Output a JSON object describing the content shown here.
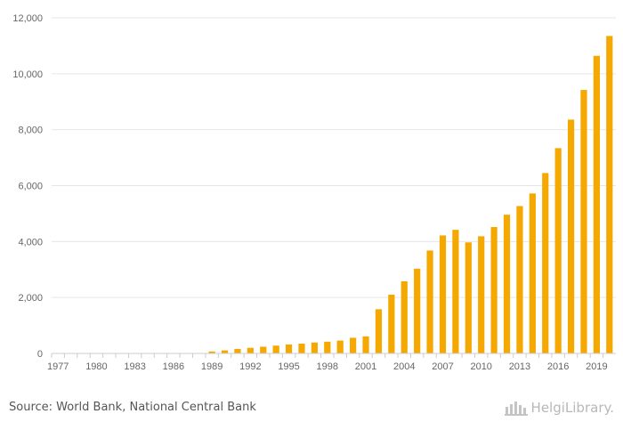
{
  "source_text": "Source: World Bank, National Central Bank",
  "logo": {
    "text": "HelgiLibrary.",
    "icon": "helgi-library-logo-icon"
  },
  "colors": {
    "bar": "#f5a800",
    "grid": "#e6e6e6",
    "axis": "#cccccc",
    "text": "#666666"
  },
  "chart_data": {
    "type": "bar",
    "title": "",
    "xlabel": "",
    "ylabel": "",
    "ylim": [
      0,
      12000
    ],
    "yticks": [
      0,
      2000,
      4000,
      6000,
      8000,
      10000,
      12000
    ],
    "ytick_labels": [
      "0",
      "2,000",
      "4,000",
      "6,000",
      "8,000",
      "10,000",
      "12,000"
    ],
    "xtick_labels": [
      "1977",
      "1980",
      "1983",
      "1986",
      "1989",
      "1992",
      "1995",
      "1998",
      "2001",
      "2004",
      "2007",
      "2010",
      "2013",
      "2016",
      "2019"
    ],
    "grid": true,
    "categories": [
      "1977",
      "1978",
      "1979",
      "1980",
      "1981",
      "1982",
      "1983",
      "1984",
      "1985",
      "1986",
      "1987",
      "1988",
      "1989",
      "1990",
      "1991",
      "1992",
      "1993",
      "1994",
      "1995",
      "1996",
      "1997",
      "1998",
      "1999",
      "2000",
      "2001",
      "2002",
      "2003",
      "2004",
      "2005",
      "2006",
      "2007",
      "2008",
      "2009",
      "2010",
      "2011",
      "2012",
      "2013",
      "2014",
      "2015",
      "2016",
      "2017",
      "2018",
      "2019",
      "2020"
    ],
    "values": [
      0,
      0,
      0,
      0,
      0,
      0,
      0,
      0,
      0,
      0,
      0,
      0,
      70,
      110,
      160,
      200,
      240,
      280,
      320,
      350,
      390,
      420,
      460,
      560,
      610,
      1580,
      2100,
      2580,
      3030,
      3680,
      4220,
      4420,
      3970,
      4190,
      4520,
      4960,
      5270,
      5720,
      6450,
      7340,
      8360,
      9420,
      10640,
      11350
    ]
  }
}
